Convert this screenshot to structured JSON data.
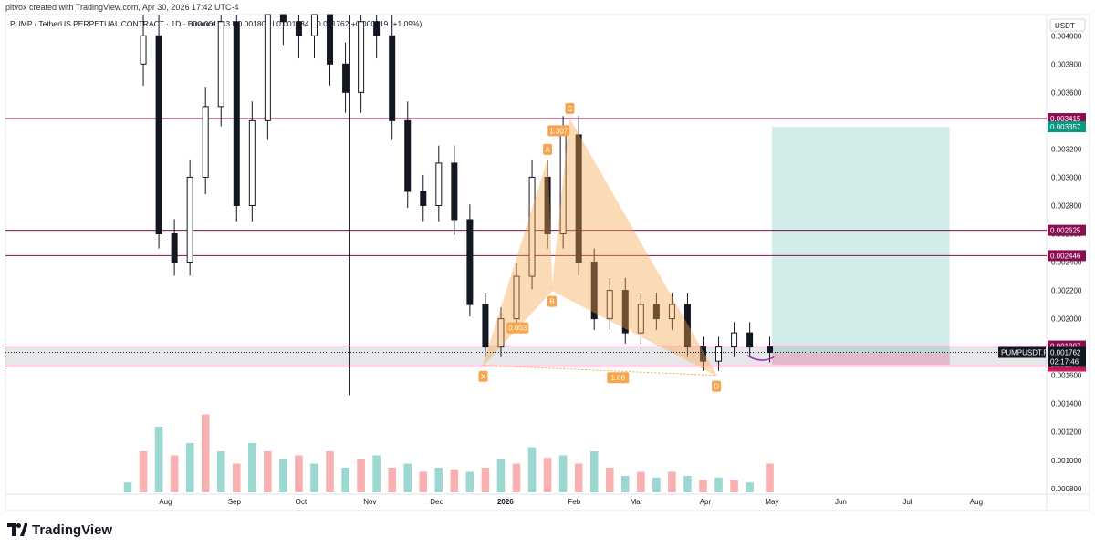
{
  "header": {
    "credit": "pitvox created with TradingView.com, Apr 30, 2026 17:42 UTC-4",
    "symbol_line": "PUMP / TetherUS PERPETUAL CONTRACT · 1D · Binance",
    "ohlc": "O0.001743 H0.001808 L0.001734 C0.001762 +0.000019 (+1.09%)"
  },
  "price_axis": {
    "currency": "USDT",
    "ticks": [
      "0.004000",
      "0.003800",
      "0.003600",
      "0.003400",
      "0.003200",
      "0.003000",
      "0.002800",
      "0.002600",
      "0.002400",
      "0.002200",
      "0.002000",
      "0.001800",
      "0.001600",
      "0.001400",
      "0.001200",
      "0.001000",
      "0.000800"
    ],
    "last_price_label": "PUMPUSDT.P",
    "last_price": "0.001762",
    "countdown": "02:17:46"
  },
  "time_axis": {
    "labels": [
      "Aug",
      "Sep",
      "Oct",
      "Nov",
      "Dec",
      "2026",
      "Feb",
      "Mar",
      "Apr",
      "May",
      "Jun",
      "Jul",
      "Aug"
    ]
  },
  "levels": [
    {
      "value": "0.003415",
      "color": "#880e4f"
    },
    {
      "value": "0.002625",
      "color": "#880e4f"
    },
    {
      "value": "0.002446",
      "color": "#880e4f"
    },
    {
      "value": "0.001807",
      "color": "#880e4f"
    },
    {
      "value": "0.001665",
      "color": "#d81b60"
    }
  ],
  "position_labels": [
    {
      "value": "0.003357",
      "color": "#089981"
    },
    {
      "value": "0.001756",
      "color": "#787b86"
    },
    {
      "value": "0.001676",
      "color": "#c2185b"
    }
  ],
  "harmonic": {
    "points": [
      "X",
      "A",
      "B",
      "C",
      "D"
    ],
    "ratios": [
      "0.603",
      "1.307",
      "1.08"
    ],
    "color": "#f7a44a"
  },
  "logo": {
    "text": "TradingView"
  },
  "chart_data": {
    "type": "candlestick",
    "title": "PUMP / TetherUS PERPETUAL CONTRACT · 1D · Binance",
    "y_unit": "USDT",
    "y_range": [
      0.00076,
      0.00415
    ],
    "x_range": [
      "2025-07-15",
      "2026-08-15"
    ],
    "series": [
      {
        "name": "price",
        "points": [
          [
            "2025-07-15",
            0.0038
          ],
          [
            "2025-07-22",
            0.004
          ],
          [
            "2025-07-29",
            0.0026
          ],
          [
            "2025-08-05",
            0.0024
          ],
          [
            "2025-08-12",
            0.003
          ],
          [
            "2025-08-19",
            0.0035
          ],
          [
            "2025-08-26",
            0.0041
          ],
          [
            "2025-09-02",
            0.0028
          ],
          [
            "2025-09-09",
            0.0034
          ],
          [
            "2025-09-16",
            0.0042
          ],
          [
            "2025-09-23",
            0.0041
          ],
          [
            "2025-09-30",
            0.004
          ],
          [
            "2025-10-07",
            0.0042
          ],
          [
            "2025-10-14",
            0.0038
          ],
          [
            "2025-10-21",
            0.0036
          ],
          [
            "2025-10-28",
            0.0041
          ],
          [
            "2025-11-04",
            0.004
          ],
          [
            "2025-11-11",
            0.0034
          ],
          [
            "2025-11-18",
            0.0029
          ],
          [
            "2025-11-25",
            0.0028
          ],
          [
            "2025-12-02",
            0.0031
          ],
          [
            "2025-12-09",
            0.0027
          ],
          [
            "2025-12-16",
            0.0021
          ],
          [
            "2025-12-23",
            0.0018
          ],
          [
            "2025-12-30",
            0.002
          ],
          [
            "2026-01-06",
            0.0023
          ],
          [
            "2026-01-13",
            0.003
          ],
          [
            "2026-01-20",
            0.0026
          ],
          [
            "2026-01-27",
            0.0033
          ],
          [
            "2026-02-03",
            0.0024
          ],
          [
            "2026-02-10",
            0.002
          ],
          [
            "2026-02-17",
            0.0022
          ],
          [
            "2026-02-24",
            0.0019
          ],
          [
            "2026-03-03",
            0.0021
          ],
          [
            "2026-03-10",
            0.002
          ],
          [
            "2026-03-17",
            0.0021
          ],
          [
            "2026-03-24",
            0.0018
          ],
          [
            "2026-03-31",
            0.0017
          ],
          [
            "2026-04-07",
            0.0018
          ],
          [
            "2026-04-14",
            0.0019
          ],
          [
            "2026-04-21",
            0.0018
          ],
          [
            "2026-04-30",
            0.001762
          ]
        ]
      }
    ],
    "volume": [
      0.12,
      0.5,
      0.8,
      0.45,
      0.6,
      0.95,
      0.5,
      0.35,
      0.6,
      0.5,
      0.4,
      0.45,
      0.35,
      0.5,
      0.3,
      0.4,
      0.45,
      0.3,
      0.35,
      0.25,
      0.3,
      0.28,
      0.25,
      0.3,
      0.4,
      0.35,
      0.55,
      0.42,
      0.45,
      0.35,
      0.5,
      0.3,
      0.2,
      0.25,
      0.18,
      0.25,
      0.2,
      0.15,
      0.18,
      0.15,
      0.12,
      0.35
    ],
    "harmonic_pattern": {
      "X": [
        "2025-12-22",
        0.00167
      ],
      "A": [
        "2026-01-20",
        0.00312
      ],
      "B": [
        "2026-01-22",
        0.0022
      ],
      "C": [
        "2026-01-30",
        0.00341
      ],
      "D": [
        "2026-04-06",
        0.0016
      ]
    },
    "long_position": {
      "entry": 0.001756,
      "target": 0.003357,
      "stop": 0.001676,
      "start": "2026-05-01",
      "end": "2026-07-20"
    },
    "horizontal_levels": [
      0.003415,
      0.002625,
      0.002446,
      0.001807,
      0.001665
    ],
    "grid": false,
    "legend": "top-left"
  }
}
